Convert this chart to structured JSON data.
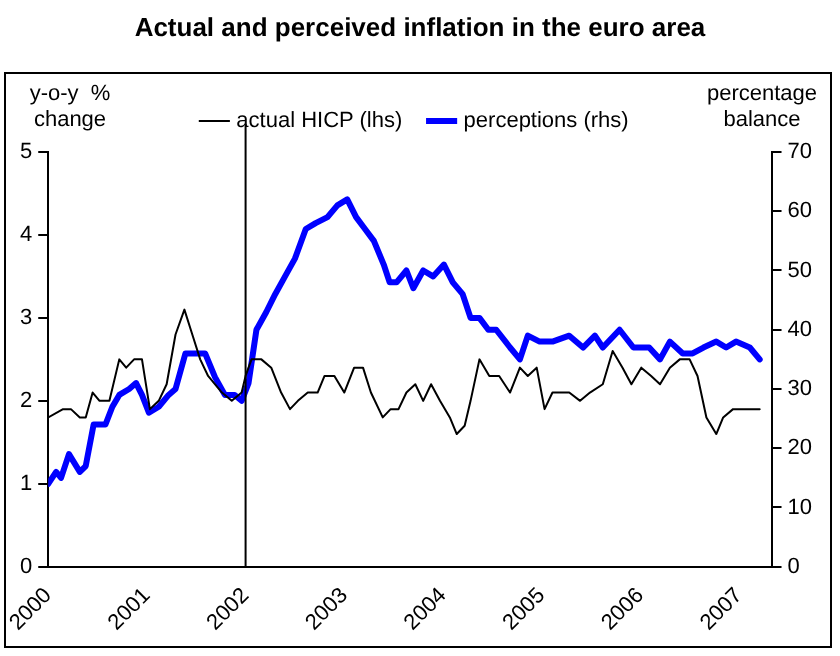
{
  "chart_data": {
    "type": "line",
    "title": "Actual and perceived inflation in the euro area",
    "ylabel": "y-o-y  %\nchange",
    "y2label": "percentage\nbalance",
    "xlim": [
      2000,
      2007.33
    ],
    "xticks": [
      2000,
      2001,
      2002,
      2003,
      2004,
      2005,
      2006,
      2007
    ],
    "ylim": [
      0,
      5
    ],
    "yticks": [
      0,
      1,
      2,
      3,
      4,
      5
    ],
    "y2lim": [
      0,
      70
    ],
    "y2ticks": [
      0,
      10,
      20,
      30,
      40,
      50,
      60,
      70
    ],
    "grid": false,
    "legend": "top",
    "marker": "none",
    "line_style": "solid",
    "ref_lines": [
      {
        "axis": "x",
        "value": 2002,
        "color": "#000000"
      }
    ],
    "series": [
      {
        "name": "actual HICP (lhs)",
        "color": "#000000",
        "axis": "y",
        "x": [
          2000,
          2000.15,
          2000.23,
          2000.32,
          2000.38,
          2000.45,
          2000.52,
          2000.62,
          2000.72,
          2000.79,
          2000.87,
          2000.95,
          2001.03,
          2001.12,
          2001.2,
          2001.29,
          2001.38,
          2001.46,
          2001.54,
          2001.62,
          2001.76,
          2001.86,
          2001.96,
          2002,
          2002.06,
          2002.16,
          2002.26,
          2002.36,
          2002.45,
          2002.53,
          2002.63,
          2002.73,
          2002.8,
          2002.9,
          2003,
          2003.1,
          2003.19,
          2003.27,
          2003.39,
          2003.47,
          2003.55,
          2003.63,
          2003.72,
          2003.8,
          2003.88,
          2003.97,
          2004.07,
          2004.14,
          2004.22,
          2004.28,
          2004.37,
          2004.47,
          2004.57,
          2004.68,
          2004.78,
          2004.86,
          2004.95,
          2005.03,
          2005.11,
          2005.28,
          2005.39,
          2005.49,
          2005.62,
          2005.72,
          2005.82,
          2005.91,
          2006.01,
          2006.11,
          2006.2,
          2006.3,
          2006.4,
          2006.5,
          2006.58,
          2006.67,
          2006.77,
          2006.84,
          2006.94,
          2007.04,
          2007.14,
          2007.21
        ],
        "values": [
          1.8,
          1.9,
          1.9,
          1.8,
          1.8,
          2.1,
          2.0,
          2.0,
          2.5,
          2.4,
          2.5,
          2.5,
          1.9,
          2.0,
          2.2,
          2.8,
          3.1,
          2.8,
          2.5,
          2.3,
          2.1,
          2.0,
          2.1,
          2.3,
          2.5,
          2.5,
          2.4,
          2.1,
          1.9,
          2.0,
          2.1,
          2.1,
          2.3,
          2.3,
          2.1,
          2.4,
          2.4,
          2.1,
          1.8,
          1.9,
          1.9,
          2.1,
          2.2,
          2.0,
          2.2,
          2.0,
          1.8,
          1.6,
          1.7,
          2.0,
          2.5,
          2.3,
          2.3,
          2.1,
          2.4,
          2.3,
          2.4,
          1.9,
          2.1,
          2.1,
          2.0,
          2.1,
          2.2,
          2.6,
          2.4,
          2.2,
          2.4,
          2.3,
          2.2,
          2.4,
          2.5,
          2.5,
          2.3,
          1.8,
          1.6,
          1.8,
          1.9,
          1.9,
          1.9,
          1.9
        ]
      },
      {
        "name": "perceptions (rhs)",
        "color": "#0000ff",
        "axis": "y2",
        "x": [
          2000,
          2000.08,
          2000.13,
          2000.21,
          2000.32,
          2000.38,
          2000.46,
          2000.58,
          2000.65,
          2000.72,
          2000.82,
          2000.89,
          2000.95,
          2001.02,
          2001.12,
          2001.22,
          2001.29,
          2001.39,
          2001.59,
          2001.69,
          2001.79,
          2001.89,
          2001.96,
          2002.03,
          2002.11,
          2002.21,
          2002.3,
          2002.4,
          2002.5,
          2002.61,
          2002.71,
          2002.83,
          2002.93,
          2003.03,
          2003.12,
          2003.21,
          2003.3,
          2003.4,
          2003.46,
          2003.53,
          2003.63,
          2003.7,
          2003.8,
          2003.9,
          2004.01,
          2004.1,
          2004.2,
          2004.28,
          2004.37,
          2004.46,
          2004.54,
          2004.68,
          2004.78,
          2004.86,
          2004.98,
          2005.11,
          2005.28,
          2005.42,
          2005.54,
          2005.62,
          2005.79,
          2005.93,
          2006.09,
          2006.2,
          2006.3,
          2006.43,
          2006.53,
          2006.64,
          2006.77,
          2006.87,
          2006.97,
          2007.11,
          2007.21
        ],
        "values": [
          14,
          16,
          15,
          19,
          16,
          17,
          24,
          24,
          27,
          29,
          30,
          31,
          29,
          26,
          27,
          29,
          30,
          36,
          36,
          32,
          29,
          29,
          28,
          31,
          40,
          43,
          46,
          49,
          52,
          57,
          58,
          59,
          61,
          62,
          59,
          57,
          55,
          51,
          48,
          48,
          50,
          47,
          50,
          49,
          51,
          48,
          46,
          42,
          42,
          40,
          40,
          37,
          35,
          39,
          38,
          38,
          39,
          37,
          39,
          37,
          40,
          37,
          37,
          35,
          38,
          36,
          36,
          37,
          38,
          37,
          38,
          37,
          35
        ]
      }
    ]
  }
}
